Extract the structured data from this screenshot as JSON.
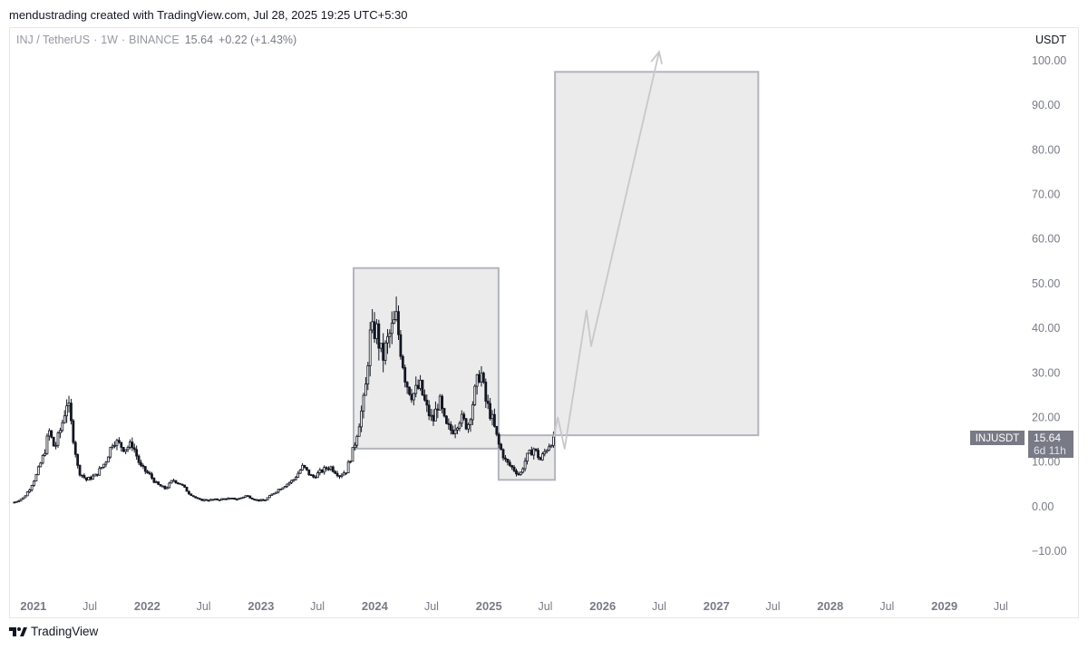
{
  "caption": "mendustrading created with TradingView.com, Jul 28, 2025 19:25 UTC+5:30",
  "legend": {
    "symbol": "INJ / TetherUS",
    "interval": "1W",
    "exchange": "BINANCE",
    "price": "15.64",
    "change": "+0.22 (+1.43%)"
  },
  "currency": "USDT",
  "brand": "TradingView",
  "price_tag": {
    "symbol": "INJUSDT",
    "price": "15.64",
    "countdown": "6d 11h"
  },
  "colors": {
    "candle": "#131722",
    "box_fill": "#ebebeb",
    "box_stroke": "#b2b5be",
    "projection": "#c8c8c8",
    "tag_bg": "#787b86"
  },
  "chart_data": {
    "type": "candlestick",
    "series_name": "INJ / TetherUS",
    "ylim": [
      -10,
      100
    ],
    "y_ticks": [
      "100.00",
      "90.00",
      "80.00",
      "70.00",
      "60.00",
      "50.00",
      "40.00",
      "30.00",
      "20.00",
      "10.00",
      "0.00",
      "−10.00"
    ],
    "y_tick_values": [
      100,
      90,
      80,
      70,
      60,
      50,
      40,
      30,
      20,
      10,
      0,
      -10
    ],
    "x_ticks": [
      "2021",
      "Jul",
      "2022",
      "Jul",
      "2023",
      "Jul",
      "2024",
      "Jul",
      "2025",
      "Jul",
      "2026",
      "Jul",
      "2027",
      "Jul",
      "2028",
      "Jul",
      "2029",
      "Jul"
    ],
    "x_tick_dates": [
      "2021-01-01",
      "2021-07-01",
      "2022-01-01",
      "2022-07-01",
      "2023-01-01",
      "2023-07-01",
      "2024-01-01",
      "2024-07-01",
      "2025-01-01",
      "2025-07-01",
      "2026-01-01",
      "2026-07-01",
      "2027-01-01",
      "2027-07-01",
      "2028-01-01",
      "2028-07-01",
      "2029-01-01",
      "2029-07-01"
    ],
    "xlim": [
      "2020-10-15",
      "2029-09-15"
    ],
    "price_path": [
      [
        "2020-11-01",
        1.0
      ],
      [
        "2020-12-01",
        2.0
      ],
      [
        "2020-12-20",
        4.0
      ],
      [
        "2021-01-10",
        7.0
      ],
      [
        "2021-02-05",
        12.0
      ],
      [
        "2021-02-20",
        17.0
      ],
      [
        "2021-03-10",
        13.0
      ],
      [
        "2021-04-01",
        18.0
      ],
      [
        "2021-04-20",
        24.0
      ],
      [
        "2021-05-10",
        15.0
      ],
      [
        "2021-05-25",
        8.0
      ],
      [
        "2021-06-20",
        6.0
      ],
      [
        "2021-07-20",
        7.0
      ],
      [
        "2021-08-20",
        10.0
      ],
      [
        "2021-09-15",
        15.0
      ],
      [
        "2021-10-20",
        13.0
      ],
      [
        "2021-11-15",
        14.0
      ],
      [
        "2021-12-10",
        9.0
      ],
      [
        "2022-01-10",
        7.0
      ],
      [
        "2022-02-01",
        5.0
      ],
      [
        "2022-03-01",
        4.0
      ],
      [
        "2022-03-25",
        6.0
      ],
      [
        "2022-04-20",
        5.0
      ],
      [
        "2022-05-15",
        3.0
      ],
      [
        "2022-06-15",
        1.5
      ],
      [
        "2022-08-01",
        1.5
      ],
      [
        "2022-09-15",
        1.8
      ],
      [
        "2022-10-20",
        1.7
      ],
      [
        "2022-11-15",
        2.5
      ],
      [
        "2022-12-15",
        1.5
      ],
      [
        "2023-01-10",
        1.3
      ],
      [
        "2023-02-01",
        2.5
      ],
      [
        "2023-03-01",
        4.0
      ],
      [
        "2023-04-15",
        6.0
      ],
      [
        "2023-05-15",
        9.0
      ],
      [
        "2023-06-15",
        6.5
      ],
      [
        "2023-07-15",
        8.0
      ],
      [
        "2023-08-10",
        9.0
      ],
      [
        "2023-09-10",
        7.0
      ],
      [
        "2023-10-01",
        8.0
      ],
      [
        "2023-10-25",
        13.0
      ],
      [
        "2023-11-15",
        20.0
      ],
      [
        "2023-12-01",
        25.0
      ],
      [
        "2023-12-15",
        38.0
      ],
      [
        "2024-01-05",
        40.0
      ],
      [
        "2024-01-25",
        33.0
      ],
      [
        "2024-02-15",
        38.0
      ],
      [
        "2024-03-10",
        42.0
      ],
      [
        "2024-03-25",
        35.0
      ],
      [
        "2024-04-10",
        28.0
      ],
      [
        "2024-05-01",
        25.0
      ],
      [
        "2024-05-25",
        27.0
      ],
      [
        "2024-06-15",
        22.0
      ],
      [
        "2024-07-05",
        19.0
      ],
      [
        "2024-07-25",
        24.0
      ],
      [
        "2024-08-15",
        18.0
      ],
      [
        "2024-09-05",
        17.0
      ],
      [
        "2024-10-01",
        20.0
      ],
      [
        "2024-10-25",
        18.0
      ],
      [
        "2024-11-15",
        25.0
      ],
      [
        "2024-12-05",
        31.0
      ],
      [
        "2024-12-20",
        24.0
      ],
      [
        "2025-01-10",
        20.0
      ],
      [
        "2025-02-01",
        14.0
      ],
      [
        "2025-02-25",
        10.0
      ],
      [
        "2025-03-20",
        8.5
      ],
      [
        "2025-04-10",
        7.0
      ],
      [
        "2025-05-01",
        11.0
      ],
      [
        "2025-05-25",
        13.0
      ],
      [
        "2025-06-15",
        10.5
      ],
      [
        "2025-07-05",
        13.0
      ],
      [
        "2025-07-28",
        15.64
      ]
    ],
    "boxes": [
      {
        "from": "2023-10-25",
        "to": "2025-02-01",
        "low": 13.0,
        "high": 53.5
      },
      {
        "from": "2025-02-01",
        "to": "2025-08-01",
        "low": 6.0,
        "high": 16.0
      },
      {
        "from": "2025-08-01",
        "to": "2027-05-15",
        "low": 16.0,
        "high": 97.5
      }
    ],
    "projection": [
      [
        "2025-07-28",
        15.64
      ],
      [
        "2025-08-10",
        20.0
      ],
      [
        "2025-09-01",
        13.0
      ],
      [
        "2025-11-10",
        44.0
      ],
      [
        "2025-11-25",
        36.0
      ],
      [
        "2026-07-01",
        102.0
      ]
    ],
    "last_price": 15.64
  }
}
